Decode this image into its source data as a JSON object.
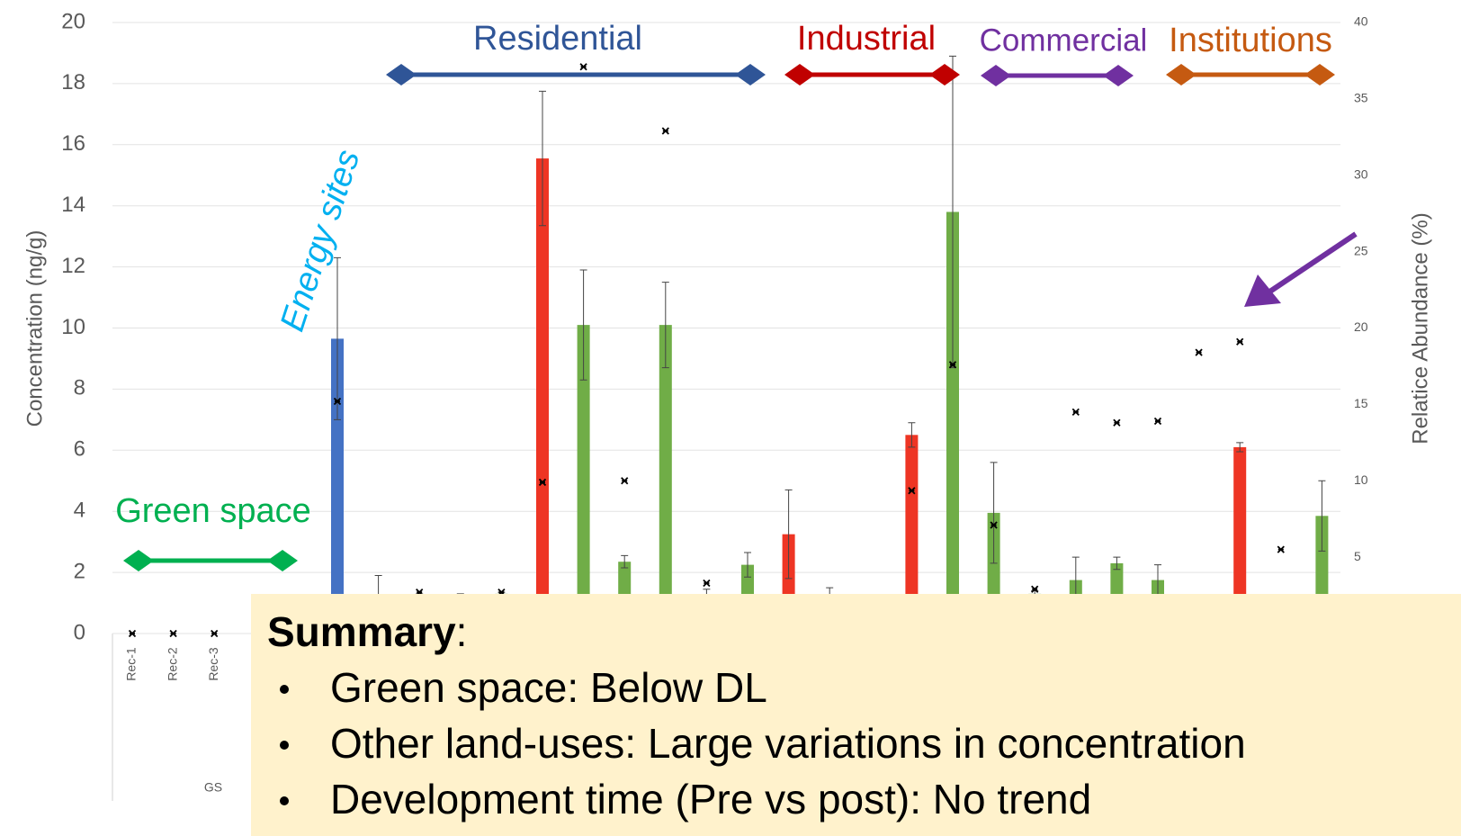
{
  "chart_data": {
    "type": "bar",
    "ylabel": "Concentration (ng/g)",
    "y2label": "Relatice Abundance (%)",
    "categories": [
      "Rec-1",
      "Rec-2",
      "Rec-3",
      null,
      null,
      null,
      null,
      null,
      null,
      null,
      null,
      null,
      null,
      null,
      null,
      null,
      null,
      null,
      null,
      null,
      null,
      null,
      null,
      null,
      null,
      null,
      null,
      null,
      null,
      null
    ],
    "group_label": "GS",
    "ylim": [
      0,
      20
    ],
    "yticks": [
      0,
      2,
      4,
      6,
      8,
      10,
      12,
      14,
      16,
      18,
      20
    ],
    "y2lim": [
      0,
      40
    ],
    "y2ticks": [
      5,
      10,
      15,
      20,
      25,
      30,
      35,
      40
    ],
    "grid": true,
    "series": [
      {
        "values": [
          null,
          null,
          null,
          null,
          null,
          9.65,
          1.0,
          1.2,
          1.25,
          1.3,
          15.55,
          10.1,
          2.35,
          10.1,
          1.2,
          2.25,
          3.25,
          1.2,
          null,
          6.5,
          13.8,
          3.95,
          1.3,
          1.75,
          2.3,
          1.75,
          null,
          6.1,
          null,
          3.85
        ],
        "errors": [
          null,
          null,
          null,
          null,
          null,
          2.65,
          0.9,
          0.1,
          0.05,
          0.05,
          2.2,
          1.8,
          0.2,
          1.4,
          0.25,
          0.4,
          1.45,
          0.3,
          null,
          0.4,
          5.1,
          1.65,
          0.1,
          0.75,
          0.2,
          0.5,
          null,
          0.15,
          null,
          1.15
        ],
        "colors": [
          null,
          null,
          null,
          null,
          null,
          "#4472c4",
          "#70ad47",
          "#70ad47",
          "#70ad47",
          "#70ad47",
          "#ee3524",
          "#70ad47",
          "#70ad47",
          "#70ad47",
          "#70ad47",
          "#70ad47",
          "#ee3524",
          "#70ad47",
          null,
          "#ee3524",
          "#70ad47",
          "#70ad47",
          "#70ad47",
          "#70ad47",
          "#70ad47",
          "#70ad47",
          null,
          "#ee3524",
          null,
          "#70ad47"
        ]
      },
      {
        "type": "scatter",
        "axis": "y2",
        "color": "#000000",
        "values": [
          0,
          0,
          0,
          null,
          null,
          15.2,
          null,
          2.7,
          null,
          2.7,
          9.9,
          37.1,
          10.0,
          32.9,
          3.3,
          null,
          null,
          null,
          null,
          9.35,
          17.6,
          7.1,
          2.9,
          14.5,
          13.8,
          13.9,
          18.4,
          19.1,
          5.5,
          null
        ]
      }
    ],
    "annotations": [
      {
        "text": "Residential",
        "color": "#2f5597"
      },
      {
        "text": "Industrial",
        "color": "#c00000"
      },
      {
        "text": "Commercial",
        "color": "#7030a0"
      },
      {
        "text": "Institutions",
        "color": "#c55a11"
      },
      {
        "text": "Green space",
        "color": "#00b050"
      },
      {
        "text": "Energy sites",
        "color": "#00b0f0"
      }
    ]
  },
  "summary": {
    "heading": [
      "Summary",
      ":"
    ],
    "bullets": [
      "Green space: Below DL",
      "Other land-uses: Large variations in concentration",
      "Development time (Pre vs post): No trend"
    ]
  }
}
